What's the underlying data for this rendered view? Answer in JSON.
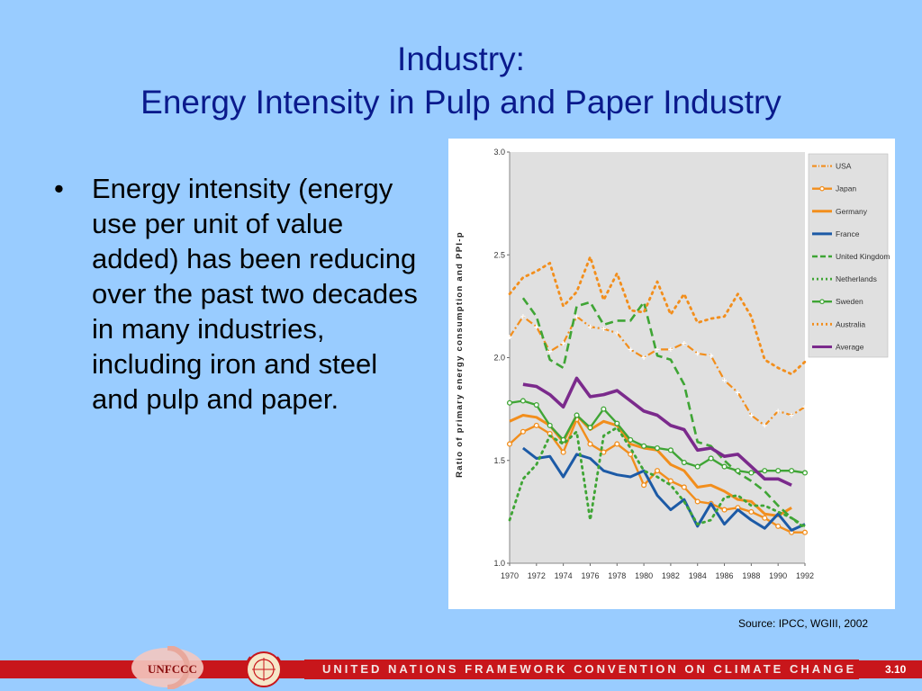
{
  "slide": {
    "title_line1": "Industry:",
    "title_line2": "Energy Intensity in Pulp and Paper Industry",
    "bullet_symbol": "•",
    "bullet_text": "Energy intensity (energy use per unit of value added) has been reducing over the past two decades in many industries, including iron and steel and pulp and paper.",
    "source": "Source: IPCC, WGIII, 2002"
  },
  "footer": {
    "logo_text": "UNFCCC",
    "banner_text": "UNITED NATIONS FRAMEWORK CONVENTION ON CLIMATE CHANGE",
    "slide_number": "3.10"
  },
  "chart_data": {
    "type": "line",
    "ylabel": "Ratio of primary energy consumption and PPI-p",
    "xlim": [
      1970,
      1992
    ],
    "ylim": [
      1.0,
      3.0
    ],
    "x_ticks": [
      1970,
      1972,
      1974,
      1976,
      1978,
      1980,
      1982,
      1984,
      1986,
      1988,
      1990,
      1992
    ],
    "y_ticks": [
      "1.0",
      "1.5",
      "2.0",
      "2.5",
      "3.0"
    ],
    "grid": false,
    "legend_position": "top-right",
    "series": [
      {
        "name": "USA",
        "color": "#f28e1c",
        "style": "dashdot-marker",
        "x": [
          1970,
          1971,
          1972,
          1973,
          1974,
          1975,
          1976,
          1977,
          1978,
          1979,
          1980,
          1981,
          1982,
          1983,
          1984,
          1985,
          1986,
          1987,
          1988,
          1989,
          1990,
          1991,
          1992
        ],
        "y": [
          2.1,
          2.2,
          2.15,
          2.03,
          2.07,
          2.2,
          2.15,
          2.14,
          2.12,
          2.04,
          2.0,
          2.04,
          2.04,
          2.07,
          2.02,
          2.01,
          1.89,
          1.83,
          1.72,
          1.67,
          1.74,
          1.72,
          1.76
        ]
      },
      {
        "name": "Japan",
        "color": "#f28e1c",
        "style": "solid-marker",
        "x": [
          1970,
          1971,
          1972,
          1973,
          1974,
          1975,
          1976,
          1977,
          1978,
          1979,
          1980,
          1981,
          1982,
          1983,
          1984,
          1985,
          1986,
          1987,
          1988,
          1989,
          1990,
          1991,
          1992
        ],
        "y": [
          1.58,
          1.64,
          1.67,
          1.63,
          1.54,
          1.7,
          1.58,
          1.54,
          1.58,
          1.53,
          1.38,
          1.45,
          1.4,
          1.37,
          1.3,
          1.29,
          1.26,
          1.27,
          1.25,
          1.22,
          1.18,
          1.15,
          1.15
        ]
      },
      {
        "name": "Germany",
        "color": "#f28e1c",
        "style": "solid",
        "x": [
          1970,
          1971,
          1972,
          1973,
          1974,
          1975,
          1976,
          1977,
          1978,
          1979,
          1980,
          1981,
          1982,
          1983,
          1984,
          1985,
          1986,
          1987,
          1988,
          1989,
          1990,
          1991
        ],
        "y": [
          1.69,
          1.72,
          1.71,
          1.67,
          1.59,
          1.72,
          1.65,
          1.69,
          1.67,
          1.58,
          1.56,
          1.55,
          1.48,
          1.45,
          1.37,
          1.38,
          1.35,
          1.31,
          1.3,
          1.24,
          1.23,
          1.27
        ]
      },
      {
        "name": "France",
        "color": "#1c5aa6",
        "style": "solid",
        "x": [
          1971,
          1972,
          1973,
          1974,
          1975,
          1976,
          1977,
          1978,
          1979,
          1980,
          1981,
          1982,
          1983,
          1984,
          1985,
          1986,
          1987,
          1988,
          1989,
          1990,
          1991,
          1992
        ],
        "y": [
          1.56,
          1.51,
          1.52,
          1.42,
          1.53,
          1.51,
          1.45,
          1.43,
          1.42,
          1.45,
          1.33,
          1.26,
          1.31,
          1.18,
          1.29,
          1.19,
          1.26,
          1.21,
          1.17,
          1.24,
          1.16,
          1.19
        ]
      },
      {
        "name": "United Kingdom",
        "color": "#3fa535",
        "style": "dashed",
        "x": [
          1971,
          1972,
          1973,
          1974,
          1975,
          1976,
          1977,
          1978,
          1979,
          1980,
          1981,
          1982,
          1983,
          1984,
          1985,
          1986,
          1987,
          1988,
          1989,
          1990,
          1991,
          1992
        ],
        "y": [
          2.29,
          2.2,
          1.99,
          1.95,
          2.25,
          2.27,
          2.16,
          2.18,
          2.18,
          2.27,
          2.01,
          1.99,
          1.87,
          1.59,
          1.57,
          1.5,
          1.44,
          1.4,
          1.35,
          1.28,
          1.22,
          1.18
        ]
      },
      {
        "name": "Netherlands",
        "color": "#3fa535",
        "style": "dotted",
        "x": [
          1970,
          1971,
          1972,
          1973,
          1974,
          1975,
          1976,
          1977,
          1978,
          1979,
          1980,
          1981,
          1982,
          1983,
          1984,
          1985,
          1986,
          1987,
          1988,
          1989,
          1990,
          1991,
          1992
        ],
        "y": [
          1.21,
          1.41,
          1.48,
          1.62,
          1.58,
          1.64,
          1.21,
          1.62,
          1.66,
          1.56,
          1.45,
          1.42,
          1.38,
          1.3,
          1.19,
          1.21,
          1.32,
          1.33,
          1.28,
          1.28,
          1.25,
          1.22,
          1.17
        ]
      },
      {
        "name": "Sweden",
        "color": "#3fa535",
        "style": "solid-marker",
        "x": [
          1970,
          1971,
          1972,
          1973,
          1974,
          1975,
          1976,
          1977,
          1978,
          1979,
          1980,
          1981,
          1982,
          1983,
          1984,
          1985,
          1986,
          1987,
          1988,
          1989,
          1990,
          1991,
          1992
        ],
        "y": [
          1.78,
          1.79,
          1.77,
          1.67,
          1.6,
          1.72,
          1.66,
          1.75,
          1.68,
          1.6,
          1.57,
          1.56,
          1.55,
          1.49,
          1.47,
          1.51,
          1.47,
          1.45,
          1.44,
          1.45,
          1.45,
          1.45,
          1.44
        ]
      },
      {
        "name": "Australia",
        "color": "#f28e1c",
        "style": "dotted",
        "x": [
          1970,
          1971,
          1972,
          1973,
          1974,
          1975,
          1976,
          1977,
          1978,
          1979,
          1980,
          1981,
          1982,
          1983,
          1984,
          1985,
          1986,
          1987,
          1988,
          1989,
          1990,
          1991,
          1992
        ],
        "y": [
          2.31,
          2.39,
          2.42,
          2.46,
          2.25,
          2.32,
          2.49,
          2.28,
          2.41,
          2.23,
          2.22,
          2.37,
          2.21,
          2.31,
          2.17,
          2.19,
          2.2,
          2.31,
          2.2,
          1.99,
          1.95,
          1.92,
          1.98
        ]
      },
      {
        "name": "Average",
        "color": "#7b2a8c",
        "style": "solid-thick",
        "x": [
          1971,
          1972,
          1973,
          1974,
          1975,
          1976,
          1977,
          1978,
          1979,
          1980,
          1981,
          1982,
          1983,
          1984,
          1985,
          1986,
          1987,
          1988,
          1989,
          1990,
          1991
        ],
        "y": [
          1.87,
          1.86,
          1.82,
          1.76,
          1.9,
          1.81,
          1.82,
          1.84,
          1.79,
          1.74,
          1.72,
          1.67,
          1.65,
          1.55,
          1.56,
          1.52,
          1.53,
          1.47,
          1.41,
          1.41,
          1.38
        ]
      }
    ]
  }
}
